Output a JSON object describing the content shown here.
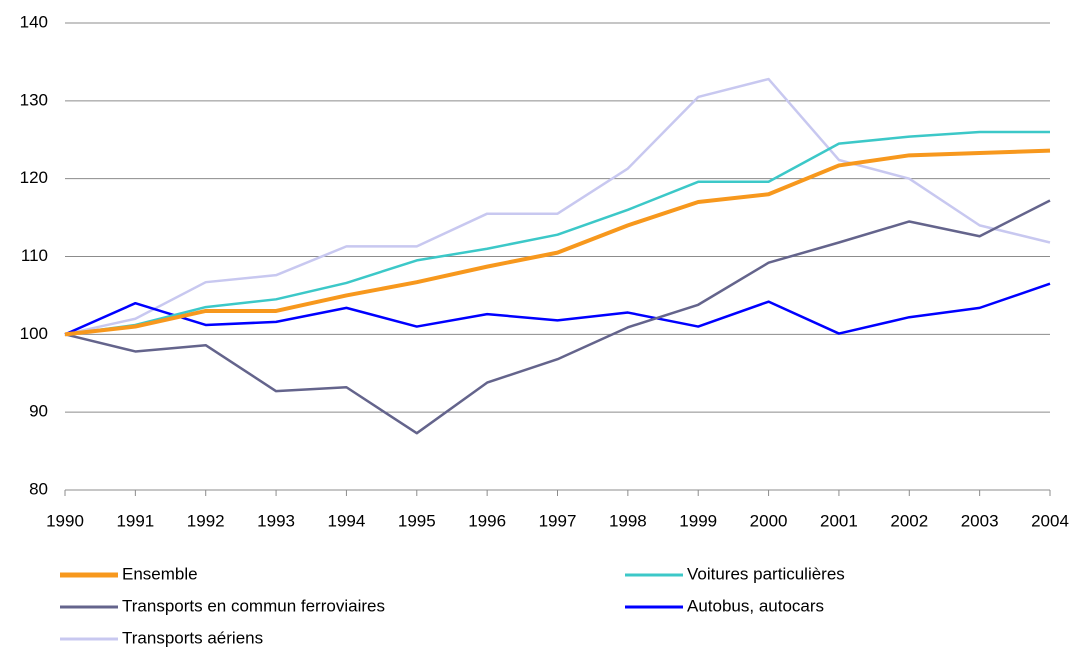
{
  "chart_data": {
    "type": "line",
    "categories": [
      "1990",
      "1991",
      "1992",
      "1993",
      "1994",
      "1995",
      "1996",
      "1997",
      "1998",
      "1999",
      "2000",
      "2001",
      "2002",
      "2003",
      "2004"
    ],
    "series": [
      {
        "name": "Ensemble",
        "color": "#f7981d",
        "values": [
          100,
          101,
          103,
          103,
          105,
          106.7,
          108.7,
          110.5,
          114,
          117,
          118,
          121.7,
          123,
          123.3,
          123.6
        ]
      },
      {
        "name": "Voitures particulières",
        "color": "#3cc8c8",
        "values": [
          100,
          101.2,
          103.5,
          104.5,
          106.6,
          109.5,
          111,
          112.8,
          116,
          119.6,
          119.6,
          124.5,
          125.4,
          126,
          126
        ]
      },
      {
        "name": "Transports en commun ferroviaires",
        "color": "#64648c",
        "values": [
          100,
          97.8,
          98.6,
          92.7,
          93.2,
          87.3,
          93.8,
          96.8,
          100.9,
          103.8,
          109.2,
          111.8,
          114.5,
          112.6,
          117.2
        ]
      },
      {
        "name": "Autobus, autocars",
        "color": "#0000ff",
        "values": [
          100,
          104,
          101.2,
          101.6,
          103.4,
          101,
          102.6,
          101.8,
          102.8,
          101,
          104.2,
          100.1,
          102.2,
          103.4,
          106.5
        ]
      },
      {
        "name": "Transports aériens",
        "color": "#c8c8f0",
        "values": [
          100,
          102,
          106.7,
          107.6,
          111.3,
          111.3,
          115.5,
          115.5,
          121.3,
          130.5,
          132.8,
          122.4,
          120,
          114,
          111.8
        ]
      }
    ],
    "ylim": [
      80,
      140
    ],
    "yticks": [
      80,
      90,
      100,
      110,
      120,
      130,
      140
    ],
    "grid": true,
    "legend": "bottom"
  }
}
